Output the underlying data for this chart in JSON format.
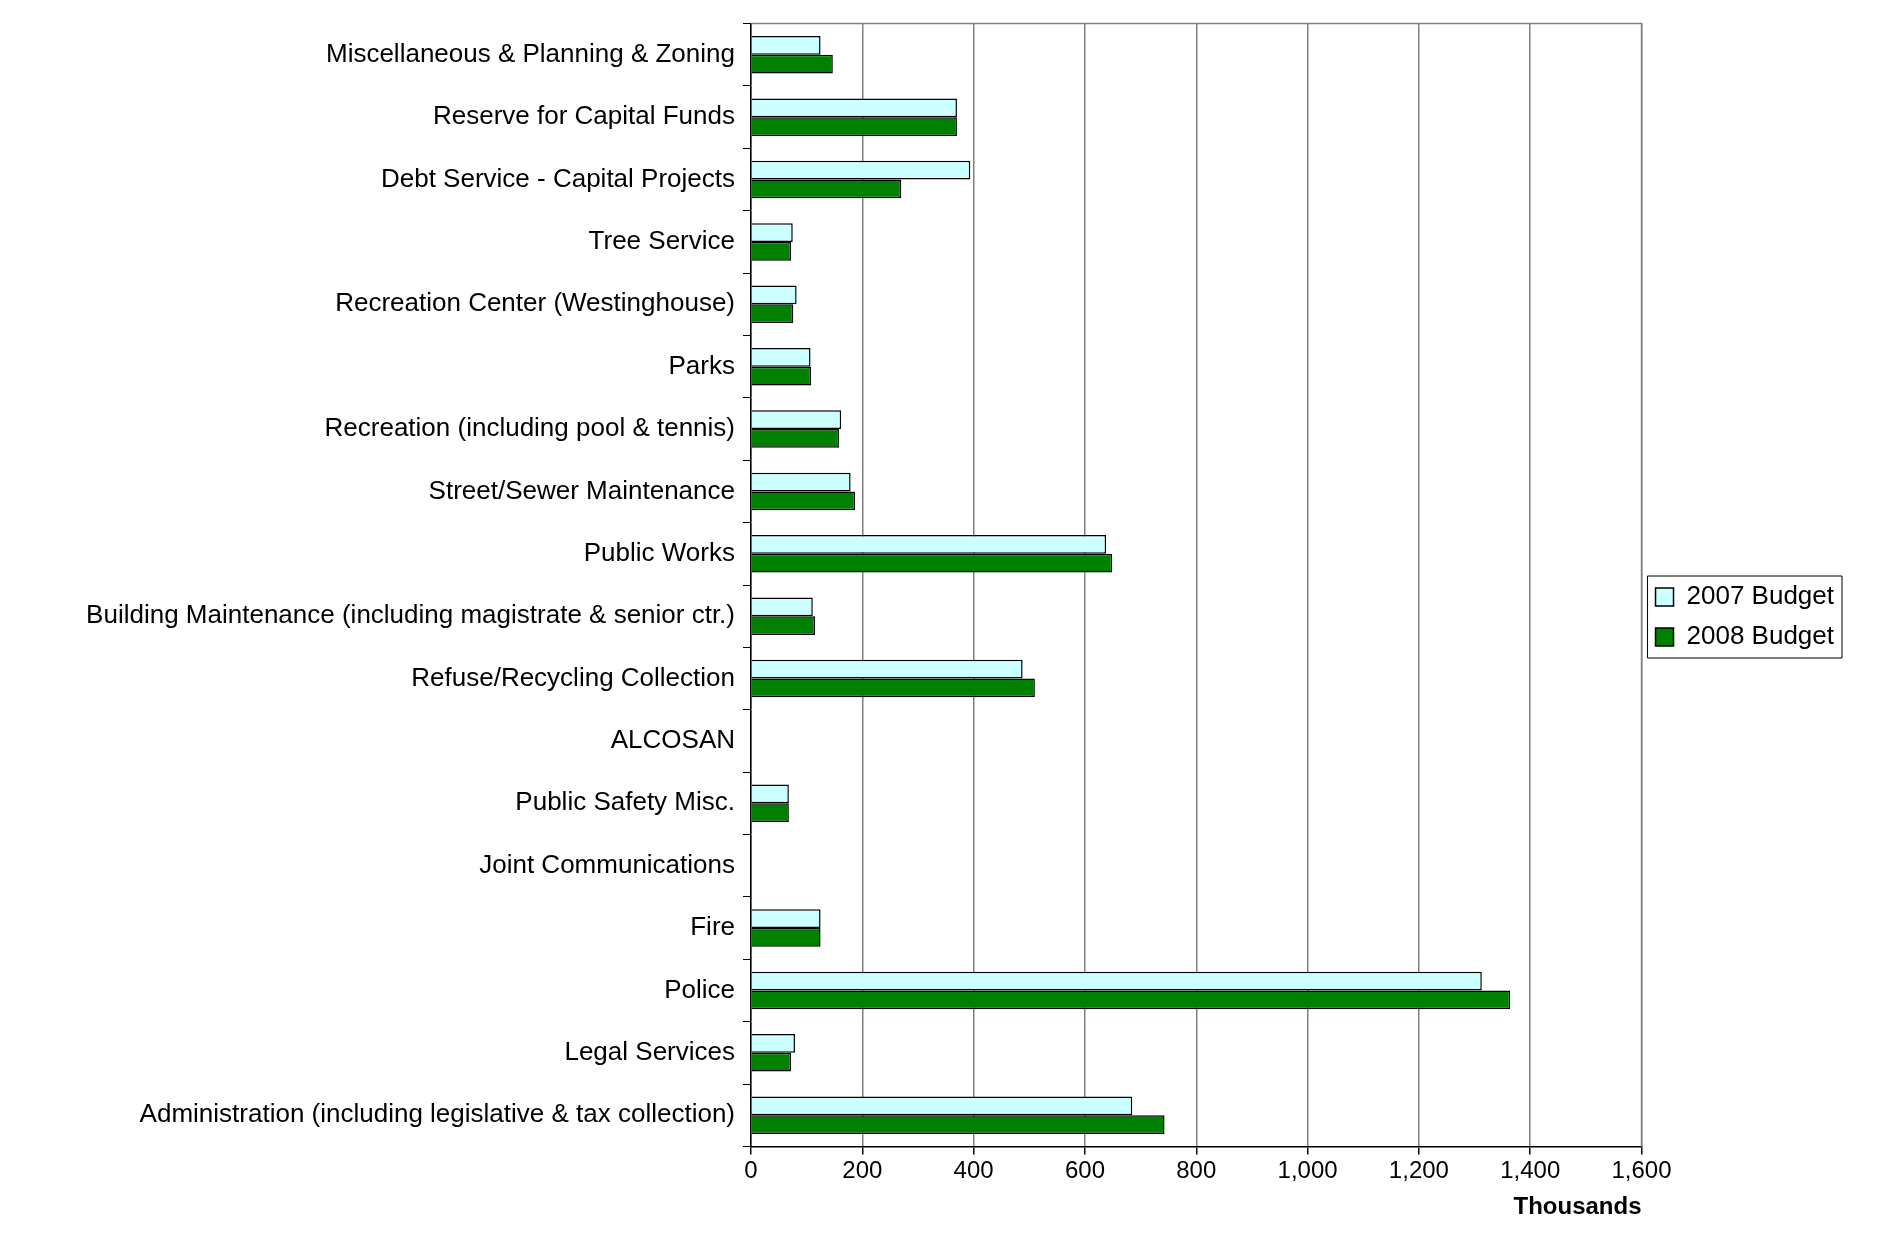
{
  "chart_data": {
    "type": "bar",
    "orientation": "horizontal",
    "xlabel": "Thousands",
    "categories": [
      "Miscellaneous & Planning & Zoning",
      "Reserve for Capital Funds",
      "Debt Service - Capital Projects",
      "Tree Service",
      "Recreation Center (Westinghouse)",
      "Parks",
      "Recreation (including pool & tennis)",
      "Street/Sewer Maintenance",
      "Public Works",
      "Building Maintenance (including magistrate & senior ctr.)",
      "Refuse/Recycling Collection",
      "ALCOSAN",
      "Public Safety Misc.",
      "Joint Communications",
      "Fire",
      "Police",
      "Legal Services",
      "Administration (including legislative & tax collection)"
    ],
    "series": [
      {
        "name": "2007 Budget",
        "color": "#ccffff",
        "values": [
          125,
          370,
          394,
          75,
          82,
          107,
          162,
          179,
          638,
          111,
          488,
          null,
          68,
          null,
          125,
          1313,
          79,
          685
        ]
      },
      {
        "name": "2008 Budget",
        "color": "#008000",
        "values": [
          147,
          370,
          270,
          72,
          76,
          108,
          158,
          187,
          649,
          115,
          510,
          null,
          68,
          null,
          125,
          1364,
          72,
          743
        ]
      }
    ],
    "xlim": [
      0,
      1600
    ],
    "xticks": [
      {
        "value": 0,
        "label": "0"
      },
      {
        "value": 200,
        "label": "200"
      },
      {
        "value": 400,
        "label": "400"
      },
      {
        "value": 600,
        "label": "600"
      },
      {
        "value": 800,
        "label": "800"
      },
      {
        "value": 1000,
        "label": "1,000"
      },
      {
        "value": 1200,
        "label": "1,200"
      },
      {
        "value": 1400,
        "label": "1,400"
      },
      {
        "value": 1600,
        "label": "1,600"
      }
    ],
    "grid": "x",
    "legend": "right"
  }
}
